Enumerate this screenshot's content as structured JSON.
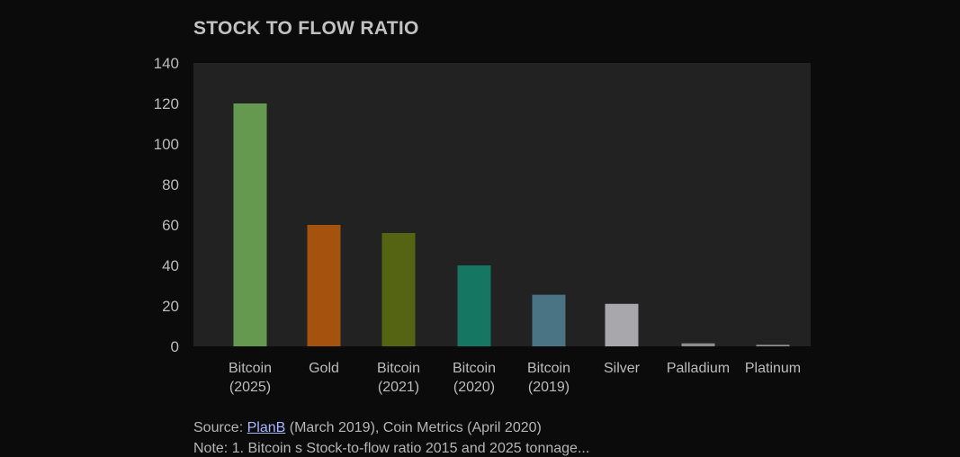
{
  "chart_data": {
    "type": "bar",
    "title": "STOCK TO FLOW RATIO",
    "xlabel": "",
    "ylabel": "",
    "ylim": [
      0,
      140
    ],
    "yticks": [
      0,
      20,
      40,
      60,
      80,
      100,
      120,
      140
    ],
    "grid": false,
    "legend": "none",
    "categories": [
      [
        "Bitcoin",
        "(2025)"
      ],
      [
        "Gold"
      ],
      [
        "Bitcoin",
        "(2021)"
      ],
      [
        "Bitcoin",
        "(2020)"
      ],
      [
        "Bitcoin",
        "(2019)"
      ],
      [
        "Silver"
      ],
      [
        "Palladium"
      ],
      [
        "Platinum"
      ]
    ],
    "values": [
      120,
      60,
      56,
      40,
      25.5,
      21,
      1.5,
      0.8
    ],
    "colors": [
      "#64994f",
      "#a5520f",
      "#556413",
      "#157661",
      "#4a7383",
      "#a7a7ac",
      "#8c8c8c",
      "#8c8c8c"
    ]
  },
  "source": {
    "prefix": "Source: ",
    "link_text": "PlanB",
    "suffix": " (March 2019), Coin Metrics (April 2020)"
  },
  "note": {
    "text": "Note: 1. Bitcoin s Stock-to-flow ratio 2015 and 2025 tonnage..."
  },
  "colors": {
    "page_background": "#0b0b0b",
    "plot_background": "#222222",
    "text": "#bdbdbd"
  }
}
